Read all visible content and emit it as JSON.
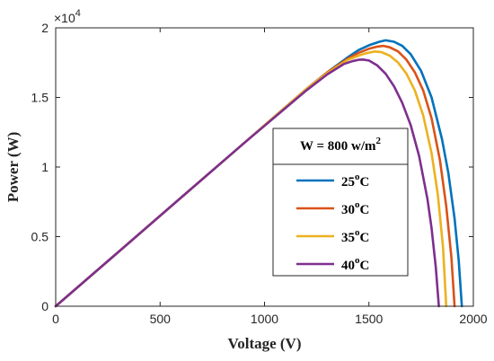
{
  "chart_data": {
    "type": "line",
    "title": "",
    "xlabel": "Voltage (V)",
    "ylabel": "Power (W)",
    "y_multiplier_label": "×10",
    "y_multiplier_exponent": "4",
    "xlim": [
      0,
      2000
    ],
    "ylim": [
      0,
      2
    ],
    "x_ticks": [
      0,
      500,
      1000,
      1500,
      2000
    ],
    "y_ticks": [
      0,
      0.5,
      1,
      1.5,
      2
    ],
    "x_tick_labels": [
      "0",
      "500",
      "1000",
      "1500",
      "2000"
    ],
    "y_tick_labels": [
      "0",
      "0.5",
      "1",
      "1.5",
      "2"
    ],
    "grid": false,
    "legend": {
      "placement": "center-right",
      "title_prefix": "W = 800 w/m",
      "title_superscript": "2",
      "unit_superscript": "o",
      "unit_suffix": "C"
    },
    "series": [
      {
        "name": "25",
        "color": "#0072BD",
        "x": [
          0,
          300,
          600,
          900,
          1200,
          1300,
          1400,
          1450,
          1500,
          1550,
          1580,
          1620,
          1660,
          1700,
          1750,
          1800,
          1850,
          1880,
          1910,
          1930,
          1945
        ],
        "y": [
          0,
          0.39,
          0.78,
          1.17,
          1.56,
          1.68,
          1.79,
          1.84,
          1.875,
          1.9,
          1.91,
          1.9,
          1.87,
          1.81,
          1.69,
          1.5,
          1.2,
          0.96,
          0.63,
          0.33,
          0
        ]
      },
      {
        "name": "30",
        "color": "#D95319",
        "x": [
          0,
          300,
          600,
          900,
          1200,
          1300,
          1400,
          1450,
          1500,
          1540,
          1570,
          1600,
          1640,
          1680,
          1720,
          1760,
          1800,
          1840,
          1870,
          1895,
          1910
        ],
        "y": [
          0,
          0.39,
          0.78,
          1.17,
          1.56,
          1.68,
          1.78,
          1.82,
          1.85,
          1.865,
          1.87,
          1.86,
          1.83,
          1.77,
          1.68,
          1.55,
          1.35,
          1.05,
          0.72,
          0.35,
          0
        ]
      },
      {
        "name": "35",
        "color": "#EDB120",
        "x": [
          0,
          300,
          600,
          900,
          1200,
          1300,
          1400,
          1450,
          1480,
          1510,
          1530,
          1560,
          1600,
          1640,
          1680,
          1720,
          1760,
          1800,
          1830,
          1855,
          1870
        ],
        "y": [
          0,
          0.39,
          0.78,
          1.17,
          1.56,
          1.675,
          1.77,
          1.8,
          1.815,
          1.825,
          1.83,
          1.825,
          1.8,
          1.75,
          1.67,
          1.55,
          1.37,
          1.1,
          0.8,
          0.42,
          0
        ]
      },
      {
        "name": "40",
        "color": "#7E2F8E",
        "x": [
          0,
          300,
          600,
          900,
          1200,
          1300,
          1380,
          1420,
          1450,
          1470,
          1500,
          1540,
          1580,
          1620,
          1660,
          1700,
          1740,
          1780,
          1800,
          1820,
          1835
        ],
        "y": [
          0,
          0.39,
          0.78,
          1.17,
          1.55,
          1.665,
          1.74,
          1.76,
          1.77,
          1.772,
          1.765,
          1.73,
          1.67,
          1.58,
          1.46,
          1.3,
          1.08,
          0.77,
          0.56,
          0.28,
          0
        ]
      }
    ]
  }
}
